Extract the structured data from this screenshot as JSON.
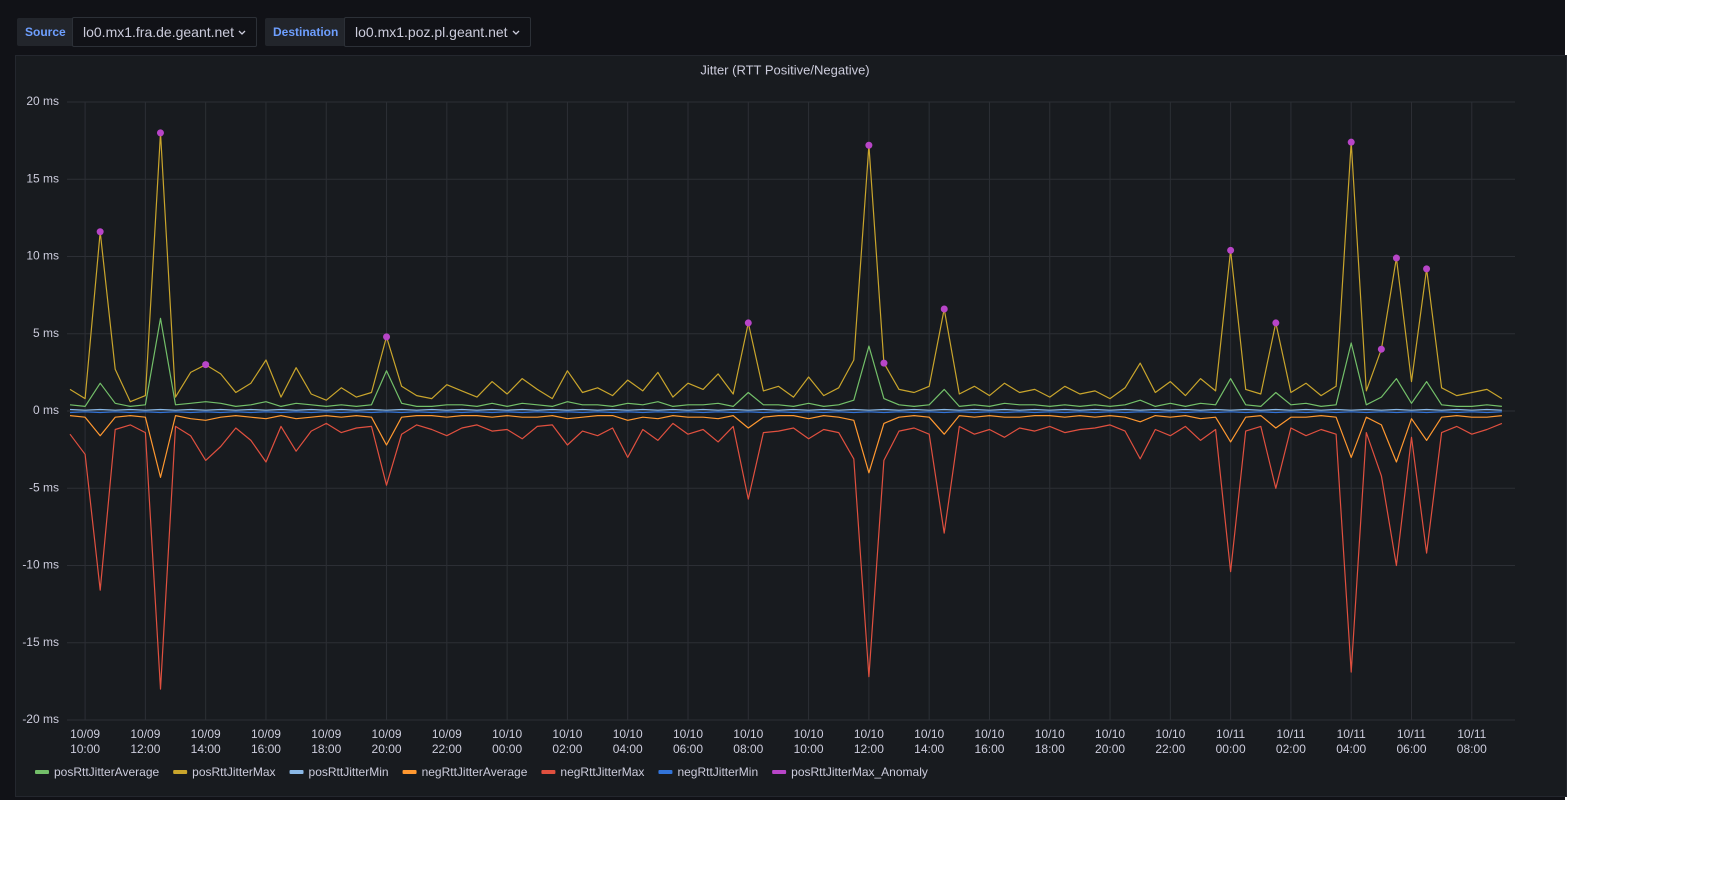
{
  "variables": {
    "source_label": "Source",
    "source_value": "lo0.mx1.fra.de.geant.net",
    "destination_label": "Destination",
    "destination_value": "lo0.mx1.poz.pl.geant.net"
  },
  "chart_data": {
    "type": "line",
    "title": "Jitter (RTT Positive/Negative)",
    "grid": true,
    "legend": "bottom",
    "xlim": [
      "10/09 09:24",
      "10/11 09:26"
    ],
    "xticks": [
      "10/09 10:00",
      "10/09 12:00",
      "10/09 14:00",
      "10/09 16:00",
      "10/09 18:00",
      "10/09 20:00",
      "10/09 22:00",
      "10/10 00:00",
      "10/10 02:00",
      "10/10 04:00",
      "10/10 06:00",
      "10/10 08:00",
      "10/10 10:00",
      "10/10 12:00",
      "10/10 14:00",
      "10/10 16:00",
      "10/10 18:00",
      "10/10 20:00",
      "10/10 22:00",
      "10/11 00:00",
      "10/11 02:00",
      "10/11 04:00",
      "10/11 06:00",
      "10/11 08:00"
    ],
    "ylim": [
      -20,
      20
    ],
    "yticks": [
      {
        "value": 20,
        "label": "20 ms"
      },
      {
        "value": 15,
        "label": "15 ms"
      },
      {
        "value": 10,
        "label": "10 ms"
      },
      {
        "value": 5,
        "label": "5 ms"
      },
      {
        "value": 0,
        "label": "0 ms"
      },
      {
        "value": -5,
        "label": "-5 ms"
      },
      {
        "value": -10,
        "label": "-10 ms"
      },
      {
        "value": -15,
        "label": "-15 ms"
      },
      {
        "value": -20,
        "label": "-20 ms"
      }
    ],
    "x": [
      "10/09 09:30",
      "10/09 10:00",
      "10/09 10:30",
      "10/09 11:00",
      "10/09 11:30",
      "10/09 12:00",
      "10/09 12:30",
      "10/09 13:00",
      "10/09 13:30",
      "10/09 14:00",
      "10/09 14:30",
      "10/09 15:00",
      "10/09 15:30",
      "10/09 16:00",
      "10/09 16:30",
      "10/09 17:00",
      "10/09 17:30",
      "10/09 18:00",
      "10/09 18:30",
      "10/09 19:00",
      "10/09 19:30",
      "10/09 20:00",
      "10/09 20:30",
      "10/09 21:00",
      "10/09 21:30",
      "10/09 22:00",
      "10/09 22:30",
      "10/09 23:00",
      "10/09 23:30",
      "10/10 00:00",
      "10/10 00:30",
      "10/10 01:00",
      "10/10 01:30",
      "10/10 02:00",
      "10/10 02:30",
      "10/10 03:00",
      "10/10 03:30",
      "10/10 04:00",
      "10/10 04:30",
      "10/10 05:00",
      "10/10 05:30",
      "10/10 06:00",
      "10/10 06:30",
      "10/10 07:00",
      "10/10 07:30",
      "10/10 08:00",
      "10/10 08:30",
      "10/10 09:00",
      "10/10 09:30",
      "10/10 10:00",
      "10/10 10:30",
      "10/10 11:00",
      "10/10 11:30",
      "10/10 12:00",
      "10/10 12:30",
      "10/10 13:00",
      "10/10 13:30",
      "10/10 14:00",
      "10/10 14:30",
      "10/10 15:00",
      "10/10 15:30",
      "10/10 16:00",
      "10/10 16:30",
      "10/10 17:00",
      "10/10 17:30",
      "10/10 18:00",
      "10/10 18:30",
      "10/10 19:00",
      "10/10 19:30",
      "10/10 20:00",
      "10/10 20:30",
      "10/10 21:00",
      "10/10 21:30",
      "10/10 22:00",
      "10/10 22:30",
      "10/10 23:00",
      "10/10 23:30",
      "10/11 00:00",
      "10/11 00:30",
      "10/11 01:00",
      "10/11 01:30",
      "10/11 02:00",
      "10/11 02:30",
      "10/11 03:00",
      "10/11 03:30",
      "10/11 04:00",
      "10/11 04:30",
      "10/11 05:00",
      "10/11 05:30",
      "10/11 06:00",
      "10/11 06:30",
      "10/11 07:00",
      "10/11 07:30",
      "10/11 08:00",
      "10/11 08:30",
      "10/11 09:00"
    ],
    "series": [
      {
        "name": "posRttJitterAverage",
        "color": "#73bf69",
        "values": [
          0.4,
          0.3,
          1.8,
          0.5,
          0.3,
          0.4,
          6.0,
          0.4,
          0.5,
          0.6,
          0.5,
          0.3,
          0.4,
          0.6,
          0.3,
          0.5,
          0.4,
          0.3,
          0.4,
          0.3,
          0.4,
          2.6,
          0.5,
          0.3,
          0.3,
          0.4,
          0.4,
          0.3,
          0.5,
          0.3,
          0.5,
          0.4,
          0.3,
          0.6,
          0.4,
          0.4,
          0.3,
          0.5,
          0.4,
          0.6,
          0.3,
          0.4,
          0.4,
          0.5,
          0.3,
          1.2,
          0.4,
          0.4,
          0.3,
          0.5,
          0.3,
          0.4,
          0.7,
          4.2,
          0.8,
          0.4,
          0.3,
          0.4,
          1.4,
          0.3,
          0.4,
          0.3,
          0.5,
          0.4,
          0.4,
          0.3,
          0.4,
          0.3,
          0.4,
          0.3,
          0.4,
          0.7,
          0.3,
          0.5,
          0.3,
          0.5,
          0.4,
          2.1,
          0.4,
          0.3,
          1.2,
          0.4,
          0.5,
          0.3,
          0.4,
          4.4,
          0.4,
          0.9,
          2.1,
          0.5,
          1.9,
          0.4,
          0.3,
          0.3,
          0.4,
          0.3
        ]
      },
      {
        "name": "posRttJitterMax",
        "color": "#c9a52c",
        "values": [
          1.4,
          0.8,
          11.6,
          2.7,
          0.6,
          1.0,
          18,
          0.9,
          2.5,
          3.0,
          2.4,
          1.2,
          1.8,
          3.3,
          0.9,
          2.8,
          1.1,
          0.7,
          1.5,
          0.9,
          1.2,
          4.8,
          1.6,
          1.0,
          0.8,
          1.7,
          1.3,
          0.9,
          1.9,
          1.1,
          2.1,
          1.4,
          0.8,
          2.6,
          1.2,
          1.5,
          1.0,
          2.0,
          1.3,
          2.5,
          0.9,
          1.8,
          1.4,
          2.4,
          1.1,
          5.7,
          1.3,
          1.6,
          0.9,
          2.2,
          1.0,
          1.5,
          3.3,
          17.2,
          3.1,
          1.4,
          1.2,
          1.6,
          6.6,
          1.1,
          1.6,
          1.0,
          1.8,
          1.2,
          1.4,
          0.9,
          1.6,
          1.1,
          1.3,
          0.8,
          1.5,
          3.1,
          1.2,
          1.9,
          1.0,
          2.1,
          1.3,
          10.4,
          1.4,
          1.1,
          5.7,
          1.2,
          1.8,
          1.0,
          1.6,
          17.4,
          1.3,
          4.0,
          9.9,
          1.9,
          9.2,
          1.5,
          1.0,
          1.2,
          1.4,
          0.8
        ]
      },
      {
        "name": "posRttJitterMin",
        "color": "#8ab8e6",
        "values": [
          0.1,
          0.05,
          0.1,
          0.05,
          0.1,
          0.05,
          0.1,
          0.05,
          0.1,
          0.05,
          0.1,
          0.05,
          0.1,
          0.05,
          0.1,
          0.05,
          0.1,
          0.05,
          0.1,
          0.05,
          0.1,
          0.05,
          0.1,
          0.05,
          0.1,
          0.05,
          0.1,
          0.05,
          0.1,
          0.05,
          0.1,
          0.05,
          0.1,
          0.05,
          0.1,
          0.05,
          0.1,
          0.05,
          0.1,
          0.05,
          0.1,
          0.05,
          0.1,
          0.05,
          0.1,
          0.05,
          0.1,
          0.05,
          0.1,
          0.05,
          0.1,
          0.05,
          0.1,
          0.05,
          0.1,
          0.05,
          0.1,
          0.05,
          0.1,
          0.05,
          0.1,
          0.05,
          0.1,
          0.05,
          0.1,
          0.05,
          0.1,
          0.05,
          0.1,
          0.05,
          0.1,
          0.05,
          0.1,
          0.05,
          0.1,
          0.05,
          0.1,
          0.05,
          0.1,
          0.05,
          0.1,
          0.05,
          0.1,
          0.05,
          0.1,
          0.05,
          0.1,
          0.05,
          0.1,
          0.05,
          0.1,
          0.05,
          0.1,
          0.05,
          0.1,
          0.05
        ]
      },
      {
        "name": "negRttJitterAverage",
        "color": "#ff9830",
        "values": [
          -0.3,
          -0.4,
          -1.6,
          -0.4,
          -0.3,
          -0.4,
          -4.3,
          -0.3,
          -0.5,
          -0.6,
          -0.4,
          -0.3,
          -0.4,
          -0.5,
          -0.3,
          -0.5,
          -0.4,
          -0.3,
          -0.4,
          -0.3,
          -0.4,
          -2.2,
          -0.4,
          -0.3,
          -0.3,
          -0.4,
          -0.3,
          -0.3,
          -0.4,
          -0.3,
          -0.4,
          -0.4,
          -0.3,
          -0.5,
          -0.4,
          -0.3,
          -0.3,
          -0.6,
          -0.4,
          -0.5,
          -0.3,
          -0.4,
          -0.4,
          -0.5,
          -0.3,
          -1.1,
          -0.4,
          -0.3,
          -0.3,
          -0.5,
          -0.3,
          -0.4,
          -0.6,
          -4.0,
          -0.8,
          -0.4,
          -0.3,
          -0.4,
          -1.5,
          -0.3,
          -0.4,
          -0.3,
          -0.4,
          -0.4,
          -0.3,
          -0.3,
          -0.4,
          -0.3,
          -0.4,
          -0.3,
          -0.4,
          -0.7,
          -0.3,
          -0.4,
          -0.3,
          -0.5,
          -0.4,
          -2.0,
          -0.4,
          -0.3,
          -1.1,
          -0.4,
          -0.4,
          -0.3,
          -0.4,
          -3.0,
          -0.4,
          -0.9,
          -3.3,
          -0.5,
          -1.9,
          -0.4,
          -0.3,
          -0.4,
          -0.4,
          -0.3
        ]
      },
      {
        "name": "negRttJitterMax",
        "color": "#e0503f",
        "values": [
          -1.5,
          -2.8,
          -11.6,
          -1.2,
          -0.9,
          -1.4,
          -18,
          -1.0,
          -1.6,
          -3.2,
          -2.3,
          -1.1,
          -1.9,
          -3.3,
          -1.0,
          -2.6,
          -1.3,
          -0.8,
          -1.4,
          -1.1,
          -1.0,
          -4.8,
          -1.5,
          -0.9,
          -1.2,
          -1.6,
          -1.1,
          -0.9,
          -1.3,
          -1.2,
          -1.8,
          -1.0,
          -0.9,
          -2.2,
          -1.3,
          -1.6,
          -1.1,
          -3.0,
          -1.2,
          -1.9,
          -0.8,
          -1.5,
          -1.2,
          -2.0,
          -1.0,
          -5.7,
          -1.4,
          -1.3,
          -1.1,
          -1.8,
          -1.2,
          -1.4,
          -3.1,
          -17.2,
          -3.2,
          -1.3,
          -1.1,
          -1.5,
          -7.9,
          -1.0,
          -1.5,
          -1.2,
          -1.7,
          -1.1,
          -1.3,
          -1.0,
          -1.4,
          -1.2,
          -1.1,
          -0.9,
          -1.3,
          -3.1,
          -1.2,
          -1.6,
          -1.0,
          -1.9,
          -1.2,
          -10.4,
          -1.3,
          -1.0,
          -5.0,
          -1.1,
          -1.6,
          -1.2,
          -1.5,
          -16.9,
          -1.4,
          -4.2,
          -10.0,
          -1.7,
          -9.2,
          -1.4,
          -1.0,
          -1.5,
          -1.2,
          -0.8
        ]
      },
      {
        "name": "negRttJitterMin",
        "color": "#3274d9",
        "values": [
          -0.1,
          -0.05,
          -0.1,
          -0.05,
          -0.1,
          -0.05,
          -0.1,
          -0.05,
          -0.1,
          -0.05,
          -0.1,
          -0.05,
          -0.1,
          -0.05,
          -0.1,
          -0.05,
          -0.1,
          -0.05,
          -0.1,
          -0.05,
          -0.1,
          -0.05,
          -0.1,
          -0.05,
          -0.1,
          -0.05,
          -0.1,
          -0.05,
          -0.1,
          -0.05,
          -0.1,
          -0.05,
          -0.1,
          -0.05,
          -0.1,
          -0.05,
          -0.1,
          -0.05,
          -0.1,
          -0.05,
          -0.1,
          -0.05,
          -0.1,
          -0.05,
          -0.1,
          -0.05,
          -0.1,
          -0.05,
          -0.1,
          -0.05,
          -0.1,
          -0.05,
          -0.1,
          -0.05,
          -0.1,
          -0.05,
          -0.1,
          -0.05,
          -0.1,
          -0.05,
          -0.1,
          -0.05,
          -0.1,
          -0.05,
          -0.1,
          -0.05,
          -0.1,
          -0.05,
          -0.1,
          -0.05,
          -0.1,
          -0.05,
          -0.1,
          -0.05,
          -0.1,
          -0.05,
          -0.1,
          -0.05,
          -0.1,
          -0.05,
          -0.1,
          -0.05,
          -0.1,
          -0.05,
          -0.1,
          -0.05,
          -0.1,
          -0.05,
          -0.1,
          -0.05,
          -0.1,
          -0.05,
          -0.1,
          -0.05,
          -0.1,
          -0.05
        ]
      },
      {
        "name": "posRttJitterMax_Anomaly",
        "color": "#b845c8",
        "points": true,
        "values": [
          null,
          null,
          11.6,
          null,
          null,
          null,
          18,
          null,
          null,
          3.0,
          null,
          null,
          null,
          null,
          null,
          null,
          null,
          null,
          null,
          null,
          null,
          4.8,
          null,
          null,
          null,
          null,
          null,
          null,
          null,
          null,
          null,
          null,
          null,
          null,
          null,
          null,
          null,
          null,
          null,
          null,
          null,
          null,
          null,
          null,
          null,
          5.7,
          null,
          null,
          null,
          null,
          null,
          null,
          null,
          17.2,
          3.1,
          null,
          null,
          null,
          6.6,
          null,
          null,
          null,
          null,
          null,
          null,
          null,
          null,
          null,
          null,
          null,
          null,
          null,
          null,
          null,
          null,
          null,
          null,
          10.4,
          null,
          null,
          5.7,
          null,
          null,
          null,
          null,
          17.4,
          null,
          4.0,
          9.9,
          null,
          9.2,
          null,
          null,
          null,
          null,
          null
        ]
      }
    ]
  }
}
